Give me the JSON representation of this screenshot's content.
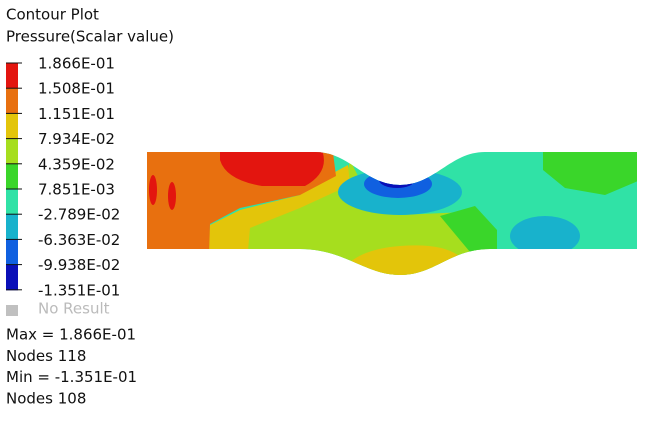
{
  "header": {
    "title": "Contour Plot",
    "subtitle": "Pressure(Scalar value)"
  },
  "legend": {
    "labels": [
      "1.866E-01",
      "1.508E-01",
      "1.151E-01",
      "7.934E-02",
      "4.359E-02",
      "7.851E-03",
      "-2.789E-02",
      "-6.363E-02",
      "-9.938E-02",
      "-1.351E-01"
    ],
    "colors": [
      "#e3150f",
      "#e8700f",
      "#e3c50a",
      "#a6de1e",
      "#3ad62a",
      "#30e2a6",
      "#18b2cc",
      "#1060e0",
      "#0a0fb8"
    ],
    "no_result": "No Result",
    "no_result_color": "#c0c0c0"
  },
  "stats": [
    "Max =  1.866E-01",
    "Nodes 118",
    "Min = -1.351E-01",
    "Nodes 108"
  ]
}
